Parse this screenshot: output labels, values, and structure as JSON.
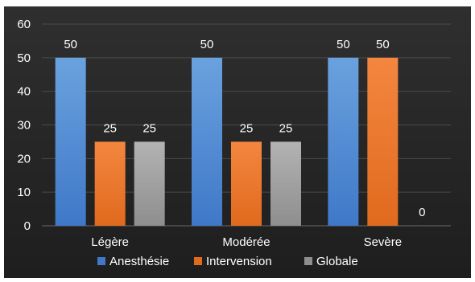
{
  "colors": {
    "background_top": "#2f2f2f",
    "background_bottom": "#1e1e1e",
    "gridline": "#4a4a4a",
    "text": "#ffffff"
  },
  "chart_data": {
    "type": "bar",
    "title": "",
    "xlabel": "",
    "ylabel": "",
    "ylim": [
      0,
      60
    ],
    "yticks": [
      0,
      10,
      20,
      30,
      40,
      50,
      60
    ],
    "grid": true,
    "legend_position": "bottom",
    "categories": [
      "Légère",
      "Modérée",
      "Sevère"
    ],
    "series": [
      {
        "name": "Anesthésie",
        "values": [
          50,
          50,
          50
        ],
        "color_top": "#6aa2de",
        "color_bottom": "#3f78c8",
        "labels": [
          "50",
          "50",
          "50"
        ]
      },
      {
        "name": "Intervension",
        "values": [
          25,
          25,
          50
        ],
        "color_top": "#f4863f",
        "color_bottom": "#e06a1e",
        "labels": [
          "25",
          "25",
          "50"
        ]
      },
      {
        "name": "Globale",
        "values": [
          25,
          25,
          0
        ],
        "color_top": "#b3b3b3",
        "color_bottom": "#8e8e8e",
        "labels": [
          "25",
          "25",
          "0"
        ]
      }
    ]
  }
}
